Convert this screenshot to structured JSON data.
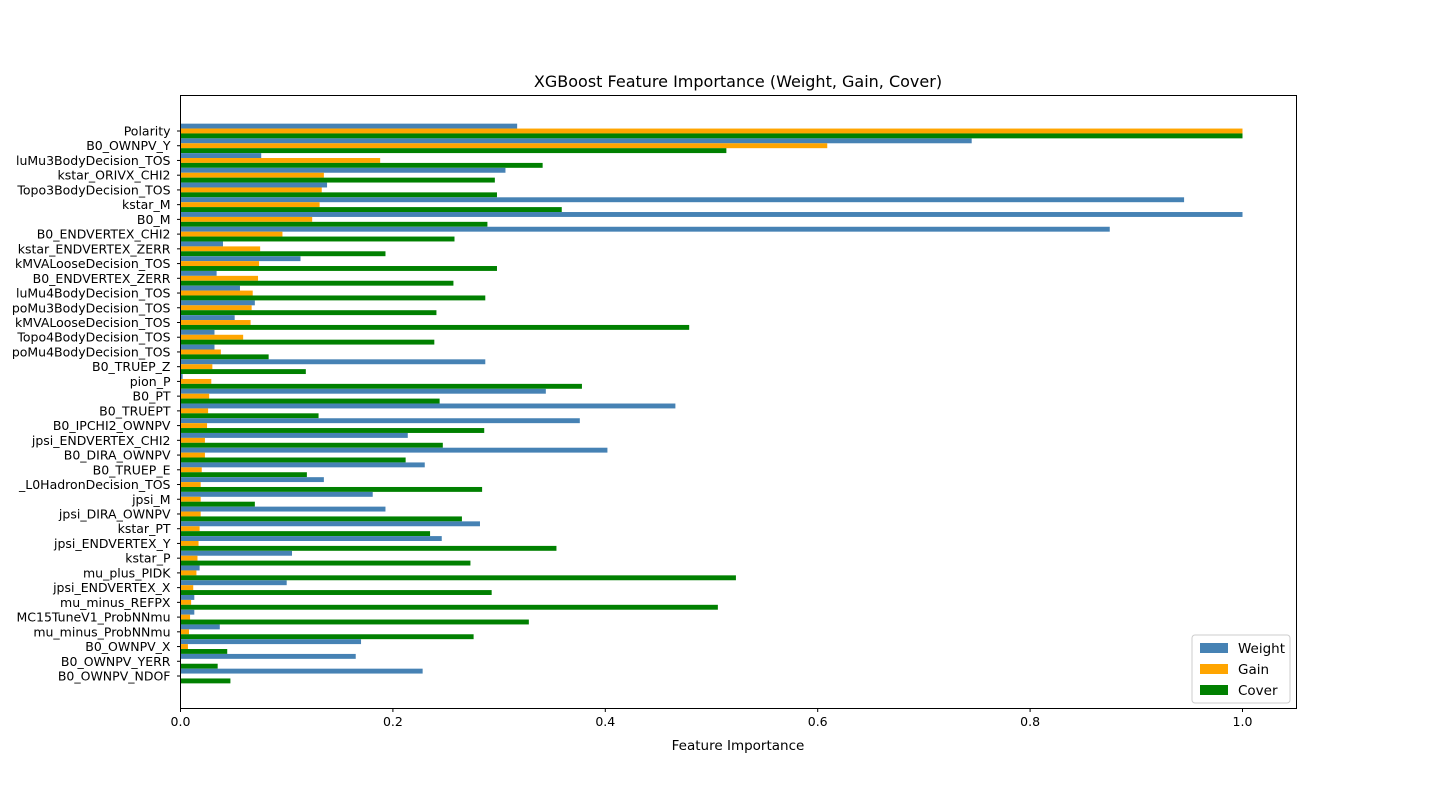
{
  "chart_data": {
    "type": "bar",
    "orientation": "horizontal",
    "title": "XGBoost Feature Importance (Weight, Gain, Cover)",
    "xlabel": "Feature Importance",
    "ylabel": "",
    "xlim": [
      0,
      1.05
    ],
    "xticks": [
      "0.0",
      "0.2",
      "0.4",
      "0.6",
      "0.8",
      "1.0"
    ],
    "grid": false,
    "legend_position": "lower-right",
    "categories": [
      "Polarity",
      "B0_OWNPV_Y",
      "luMu3BodyDecision_TOS",
      "kstar_ORIVX_CHI2",
      "Topo3BodyDecision_TOS",
      "kstar_M",
      "B0_M",
      "B0_ENDVERTEX_CHI2",
      "kstar_ENDVERTEX_ZERR",
      "kMVALooseDecision_TOS",
      "B0_ENDVERTEX_ZERR",
      "luMu4BodyDecision_TOS",
      "poMu3BodyDecision_TOS",
      "kMVALooseDecision_TOS",
      "Topo4BodyDecision_TOS",
      "poMu4BodyDecision_TOS",
      "B0_TRUEP_Z",
      "pion_P",
      "B0_PT",
      "B0_TRUEPT",
      "B0_IPCHI2_OWNPV",
      "jpsi_ENDVERTEX_CHI2",
      "B0_DIRA_OWNPV",
      "B0_TRUEP_E",
      "_L0HadronDecision_TOS",
      "jpsi_M",
      "jpsi_DIRA_OWNPV",
      "kstar_PT",
      "jpsi_ENDVERTEX_Y",
      "kstar_P",
      "mu_plus_PIDK",
      "jpsi_ENDVERTEX_X",
      "mu_minus_REFPX",
      "MC15TuneV1_ProbNNmu",
      "mu_minus_ProbNNmu",
      "B0_OWNPV_X",
      "B0_OWNPV_YERR",
      "B0_OWNPV_NDOF"
    ],
    "series": [
      {
        "name": "Weight",
        "color": "#4682b4",
        "values": [
          0.317,
          0.745,
          0.076,
          0.306,
          0.138,
          0.945,
          1.0,
          0.875,
          0.04,
          0.113,
          0.034,
          0.056,
          0.07,
          0.051,
          0.032,
          0.032,
          0.287,
          0.002,
          0.344,
          0.466,
          0.376,
          0.214,
          0.402,
          0.23,
          0.135,
          0.181,
          0.193,
          0.282,
          0.246,
          0.105,
          0.018,
          0.1,
          0.013,
          0.013,
          0.037,
          0.17,
          0.165,
          0.228
        ]
      },
      {
        "name": "Gain",
        "color": "#ffa500",
        "values": [
          1.0,
          0.609,
          0.188,
          0.135,
          0.133,
          0.131,
          0.124,
          0.096,
          0.075,
          0.074,
          0.073,
          0.068,
          0.067,
          0.066,
          0.059,
          0.038,
          0.03,
          0.029,
          0.027,
          0.026,
          0.025,
          0.023,
          0.023,
          0.02,
          0.019,
          0.019,
          0.019,
          0.018,
          0.017,
          0.016,
          0.015,
          0.012,
          0.01,
          0.009,
          0.008,
          0.007,
          0.0,
          0.0
        ]
      },
      {
        "name": "Cover",
        "color": "#008000",
        "values": [
          1.0,
          0.514,
          0.341,
          0.296,
          0.298,
          0.359,
          0.289,
          0.258,
          0.193,
          0.298,
          0.257,
          0.287,
          0.241,
          0.479,
          0.239,
          0.083,
          0.118,
          0.378,
          0.244,
          0.13,
          0.286,
          0.247,
          0.212,
          0.119,
          0.284,
          0.07,
          0.265,
          0.235,
          0.354,
          0.273,
          0.523,
          0.293,
          0.506,
          0.328,
          0.276,
          0.044,
          0.035,
          0.047
        ]
      }
    ]
  }
}
